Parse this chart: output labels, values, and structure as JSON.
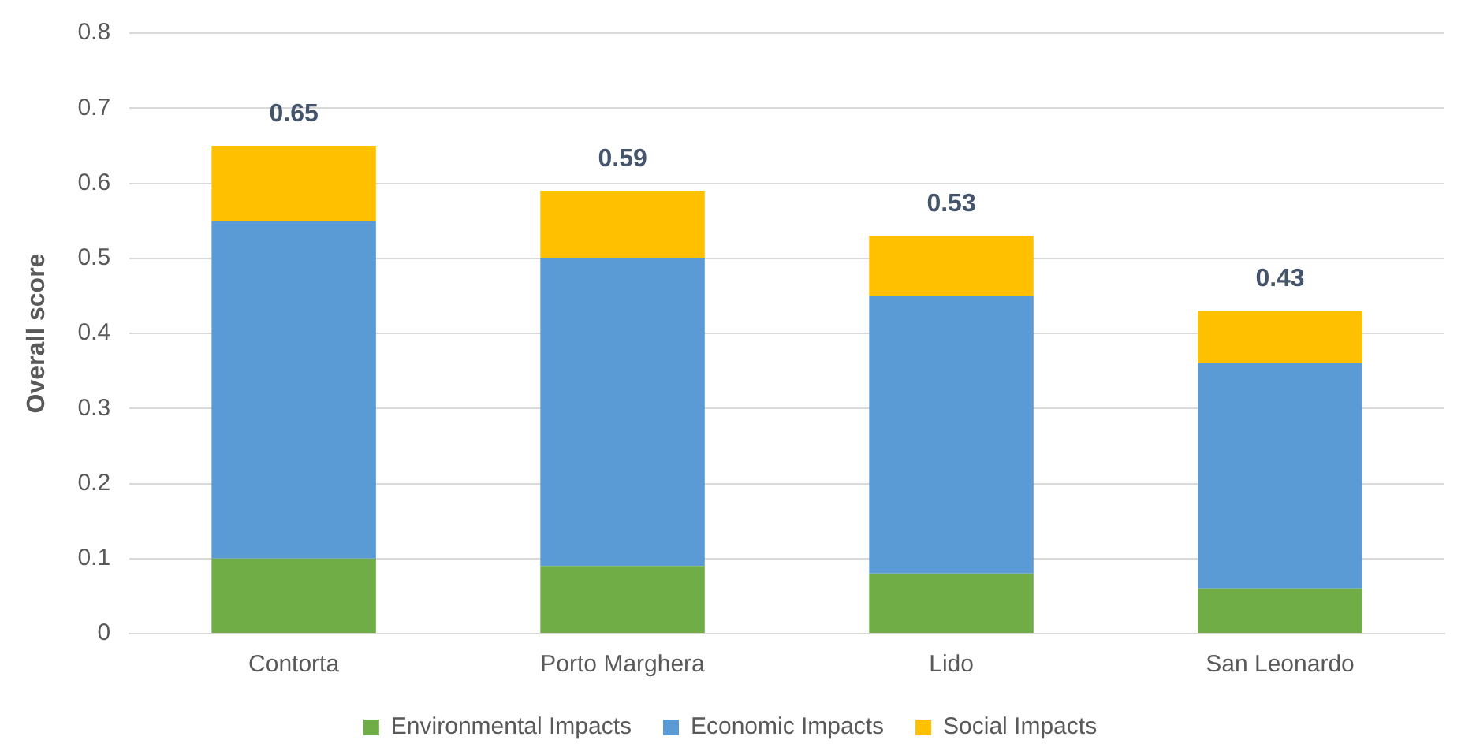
{
  "chart_data": {
    "type": "bar",
    "stacked": true,
    "ylabel": "Overall score",
    "categories": [
      "Contorta",
      "Porto Marghera",
      "Lido",
      "San Leonardo"
    ],
    "series": [
      {
        "name": "Environmental Impacts",
        "color": "#70ad47",
        "values": [
          0.1,
          0.09,
          0.08,
          0.06
        ]
      },
      {
        "name": "Economic Impacts",
        "color": "#5b9bd5",
        "values": [
          0.45,
          0.41,
          0.37,
          0.3
        ]
      },
      {
        "name": "Social Impacts",
        "color": "#ffc000",
        "values": [
          0.1,
          0.09,
          0.08,
          0.07
        ]
      }
    ],
    "totals": [
      "0.65",
      "0.59",
      "0.53",
      "0.43"
    ],
    "ylim": [
      0,
      0.8
    ],
    "yticks": [
      0,
      0.1,
      0.2,
      0.3,
      0.4,
      0.5,
      0.6,
      0.7,
      0.8
    ],
    "grid": "y",
    "legend": "bottom"
  }
}
